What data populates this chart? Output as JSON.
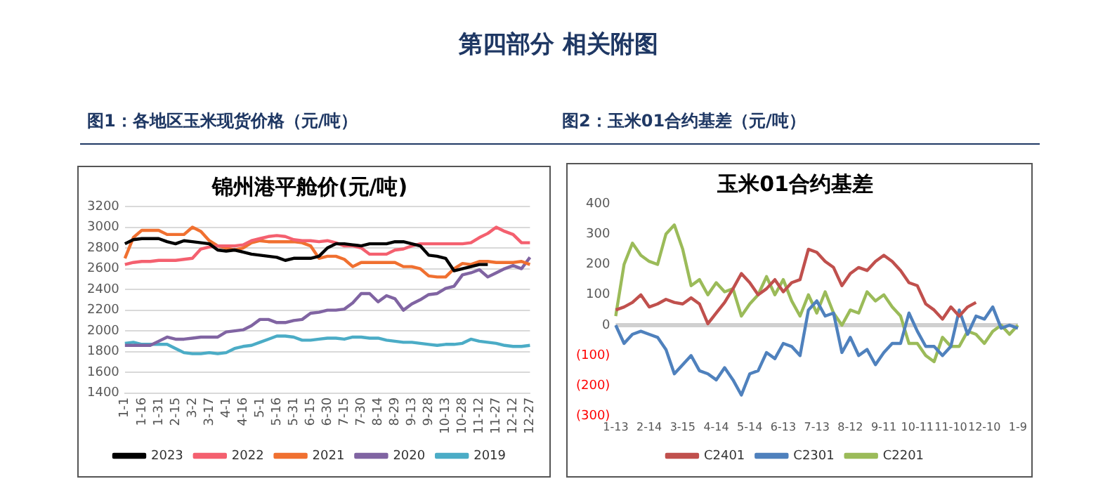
{
  "chart_data": [
    {
      "type": "line",
      "title": "锦州港平舱价(元/吨)",
      "subtitle": "图1：各地区玉米现货价格（元/吨）",
      "annotations": [
        "第四部分  相关附图"
      ],
      "categories": [
        "1-1",
        null,
        "1-16",
        null,
        "1-31",
        null,
        "2-15",
        null,
        "3-2",
        null,
        "3-17",
        null,
        "4-1",
        null,
        "4-16",
        null,
        "5-1",
        null,
        "5-16",
        null,
        "5-31",
        null,
        "6-15",
        null,
        "6-30",
        null,
        "7-15",
        null,
        "7-30",
        null,
        "8-14",
        null,
        "8-29",
        null,
        "9-13",
        null,
        "9-28",
        null,
        "10-13",
        null,
        "10-28",
        null,
        "11-12",
        null,
        "11-27",
        null,
        "12-12",
        null,
        "12-27"
      ],
      "ylim": [
        1400,
        3200
      ],
      "yticks": [
        1400,
        1600,
        1800,
        2000,
        2200,
        2400,
        2600,
        2800,
        3000,
        3200
      ],
      "grid": "y",
      "legend": "bottom",
      "marker": "none",
      "line_style": "solid",
      "series": [
        {
          "name": "2023",
          "color": "#000000",
          "values": [
            2840,
            2880,
            2890,
            2890,
            2890,
            2860,
            2840,
            2870,
            2860,
            2850,
            2840,
            2780,
            2770,
            2780,
            2760,
            2740,
            2730,
            2720,
            2710,
            2680,
            2700,
            2700,
            2700,
            2720,
            2800,
            2840,
            2840,
            2830,
            2820,
            2840,
            2840,
            2840,
            2860,
            2860,
            2840,
            2820,
            2730,
            2720,
            2700,
            2580,
            2600,
            2620,
            2640,
            2640,
            null,
            null,
            null,
            null,
            null
          ]
        },
        {
          "name": "2022",
          "color": "#f4606f",
          "values": [
            2640,
            2660,
            2670,
            2670,
            2680,
            2680,
            2680,
            2690,
            2700,
            2790,
            2810,
            2820,
            2820,
            2820,
            2830,
            2870,
            2890,
            2910,
            2920,
            2910,
            2880,
            2870,
            2870,
            2860,
            2870,
            2850,
            2820,
            2820,
            2800,
            2740,
            2740,
            2740,
            2780,
            2790,
            2820,
            2840,
            2840,
            2840,
            2840,
            2840,
            2840,
            2850,
            2900,
            2940,
            3000,
            2960,
            2930,
            2850,
            2850
          ]
        },
        {
          "name": "2021",
          "color": "#f07030",
          "values": [
            2700,
            2900,
            2970,
            2970,
            2970,
            2930,
            2930,
            2930,
            3000,
            2960,
            2870,
            2820,
            2800,
            2780,
            2800,
            2850,
            2870,
            2860,
            2860,
            2860,
            2860,
            2850,
            2820,
            2700,
            2720,
            2720,
            2690,
            2620,
            2660,
            2660,
            2660,
            2660,
            2660,
            2620,
            2620,
            2600,
            2530,
            2520,
            2520,
            2600,
            2650,
            2640,
            2670,
            2670,
            2660,
            2660,
            2660,
            2670,
            2640
          ]
        },
        {
          "name": "2020",
          "color": "#8064a2",
          "values": [
            1860,
            1860,
            1860,
            1860,
            1900,
            1940,
            1920,
            1920,
            1930,
            1940,
            1940,
            1940,
            1990,
            2000,
            2010,
            2050,
            2110,
            2110,
            2080,
            2080,
            2100,
            2110,
            2170,
            2180,
            2200,
            2200,
            2210,
            2270,
            2360,
            2360,
            2280,
            2340,
            2310,
            2200,
            2260,
            2300,
            2350,
            2360,
            2410,
            2430,
            2540,
            2560,
            2590,
            2520,
            2560,
            2600,
            2630,
            2600,
            2710
          ]
        },
        {
          "name": "2019",
          "color": "#4bacc6",
          "values": [
            1880,
            1890,
            1870,
            1870,
            1870,
            1870,
            1830,
            1790,
            1780,
            1780,
            1790,
            1780,
            1790,
            1830,
            1850,
            1860,
            1890,
            1920,
            1950,
            1950,
            1940,
            1910,
            1910,
            1920,
            1930,
            1930,
            1920,
            1940,
            1940,
            1930,
            1930,
            1910,
            1900,
            1890,
            1890,
            1880,
            1870,
            1860,
            1870,
            1870,
            1880,
            1920,
            1900,
            1890,
            1880,
            1860,
            1850,
            1850,
            1860
          ]
        }
      ]
    },
    {
      "type": "line",
      "title": "玉米01合约基差",
      "subtitle": "图2：玉米01合约基差（元/吨）",
      "categories": [
        "1-13",
        null,
        null,
        null,
        "2-14",
        null,
        null,
        null,
        "3-15",
        null,
        null,
        null,
        "4-14",
        null,
        null,
        null,
        "5-14",
        null,
        null,
        null,
        "6-13",
        null,
        null,
        null,
        "7-13",
        null,
        null,
        null,
        "8-12",
        null,
        null,
        null,
        "9-11",
        null,
        null,
        null,
        "10-11",
        null,
        null,
        null,
        "11-10",
        null,
        null,
        null,
        "12-10",
        null,
        null,
        null,
        "1-9"
      ],
      "ylim": [
        -300,
        400
      ],
      "yticks": [
        {
          "value": -300,
          "label": "(300)"
        },
        {
          "value": -200,
          "label": "(200)"
        },
        {
          "value": -100,
          "label": "(100)"
        },
        0,
        100,
        200,
        300,
        400
      ],
      "grid": false,
      "legend": "bottom",
      "marker": "none",
      "line_style": "solid",
      "ref_lines": [
        {
          "axis": "y",
          "value": 0,
          "color": "#d0d0d0"
        }
      ],
      "series": [
        {
          "name": "C2401",
          "color": "#c0504d",
          "values": [
            50,
            60,
            75,
            100,
            60,
            70,
            85,
            75,
            70,
            90,
            70,
            5,
            40,
            75,
            120,
            170,
            140,
            100,
            120,
            150,
            110,
            140,
            150,
            250,
            240,
            210,
            190,
            130,
            170,
            190,
            180,
            210,
            230,
            210,
            180,
            140,
            130,
            70,
            50,
            20,
            60,
            30,
            60,
            75,
            null,
            null,
            null,
            null,
            null
          ]
        },
        {
          "name": "C2301",
          "color": "#4f81bd",
          "values": [
            0,
            -60,
            -30,
            -20,
            -30,
            -40,
            -80,
            -160,
            -130,
            -100,
            -150,
            -160,
            -180,
            -140,
            -180,
            -230,
            -160,
            -150,
            -90,
            -110,
            -60,
            -70,
            -100,
            50,
            80,
            30,
            40,
            -90,
            -40,
            -100,
            -80,
            -130,
            -90,
            -60,
            -60,
            40,
            -20,
            -70,
            -70,
            -100,
            -70,
            50,
            -30,
            30,
            20,
            60,
            -10,
            0,
            -10
          ]
        },
        {
          "name": "C2201",
          "color": "#9bbb59",
          "values": [
            30,
            200,
            270,
            230,
            210,
            200,
            300,
            330,
            250,
            130,
            150,
            100,
            140,
            110,
            120,
            30,
            70,
            100,
            160,
            100,
            150,
            80,
            30,
            100,
            40,
            110,
            40,
            0,
            50,
            40,
            110,
            80,
            100,
            60,
            30,
            -60,
            -60,
            -100,
            -120,
            -40,
            -70,
            -70,
            -20,
            -30,
            -60,
            -20,
            0,
            -30,
            0
          ]
        }
      ]
    }
  ]
}
